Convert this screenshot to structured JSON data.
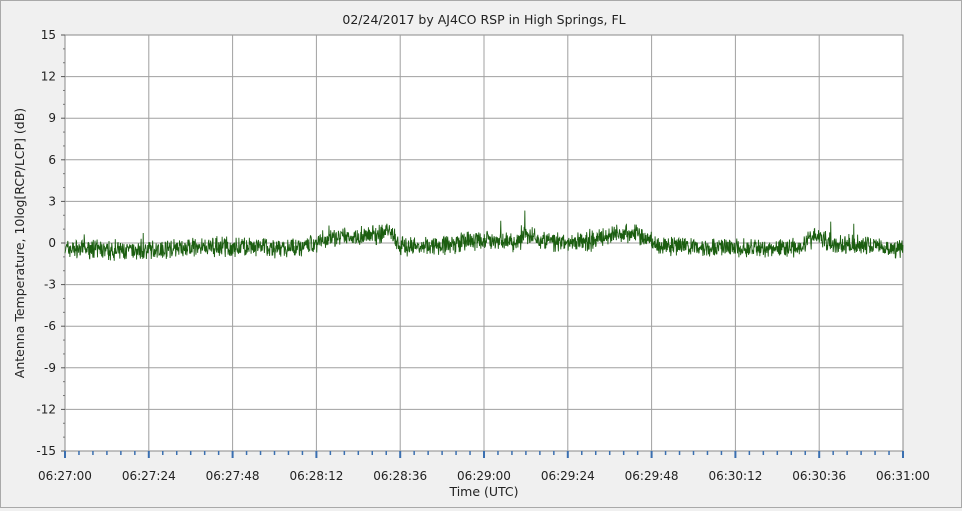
{
  "chart_data": {
    "type": "line",
    "title": "02/24/2017  by  AJ4CO RSP  in  High Springs, FL",
    "xlabel": "Time (UTC)",
    "ylabel": "Antenna Temperature, 10log[RCP/LCP] (dB)",
    "ylim": [
      -15,
      15
    ],
    "yticks": [
      15,
      12,
      9,
      6,
      3,
      0,
      -3,
      -6,
      -9,
      -12,
      -15
    ],
    "xlim": [
      "06:27:00",
      "06:31:00"
    ],
    "xticks": [
      "06:27:00",
      "06:27:24",
      "06:27:48",
      "06:28:12",
      "06:28:36",
      "06:29:00",
      "06:29:24",
      "06:29:48",
      "06:30:12",
      "06:30:36",
      "06:31:00"
    ],
    "grid": true,
    "series": [
      {
        "color": "#1b5e10",
        "x": [
          "06:27:00",
          "06:27:10",
          "06:27:20",
          "06:27:30",
          "06:27:40",
          "06:27:50",
          "06:28:00",
          "06:28:10",
          "06:28:15",
          "06:28:20",
          "06:28:25",
          "06:28:30",
          "06:28:33",
          "06:28:36",
          "06:28:40",
          "06:28:50",
          "06:29:00",
          "06:29:10",
          "06:29:12",
          "06:29:20",
          "06:29:30",
          "06:29:35",
          "06:29:40",
          "06:29:45",
          "06:29:50",
          "06:30:00",
          "06:30:10",
          "06:30:20",
          "06:30:30",
          "06:30:35",
          "06:30:40",
          "06:30:50",
          "06:31:00"
        ],
        "y": [
          -0.4,
          -0.5,
          -0.6,
          -0.4,
          -0.3,
          -0.3,
          -0.4,
          -0.2,
          0.3,
          0.4,
          0.5,
          0.6,
          1.0,
          -0.3,
          -0.2,
          -0.1,
          0.2,
          0.1,
          0.6,
          0.0,
          0.1,
          0.5,
          0.8,
          0.6,
          -0.2,
          -0.3,
          -0.3,
          -0.4,
          -0.3,
          0.5,
          -0.1,
          -0.2,
          -0.4
        ]
      }
    ]
  },
  "colors": {
    "background": "#f0f0f0",
    "plot_area": "#ffffff",
    "grid": "#a0a0a0",
    "axis_tick": "#3a6fb0",
    "series": "#1b5e10"
  }
}
